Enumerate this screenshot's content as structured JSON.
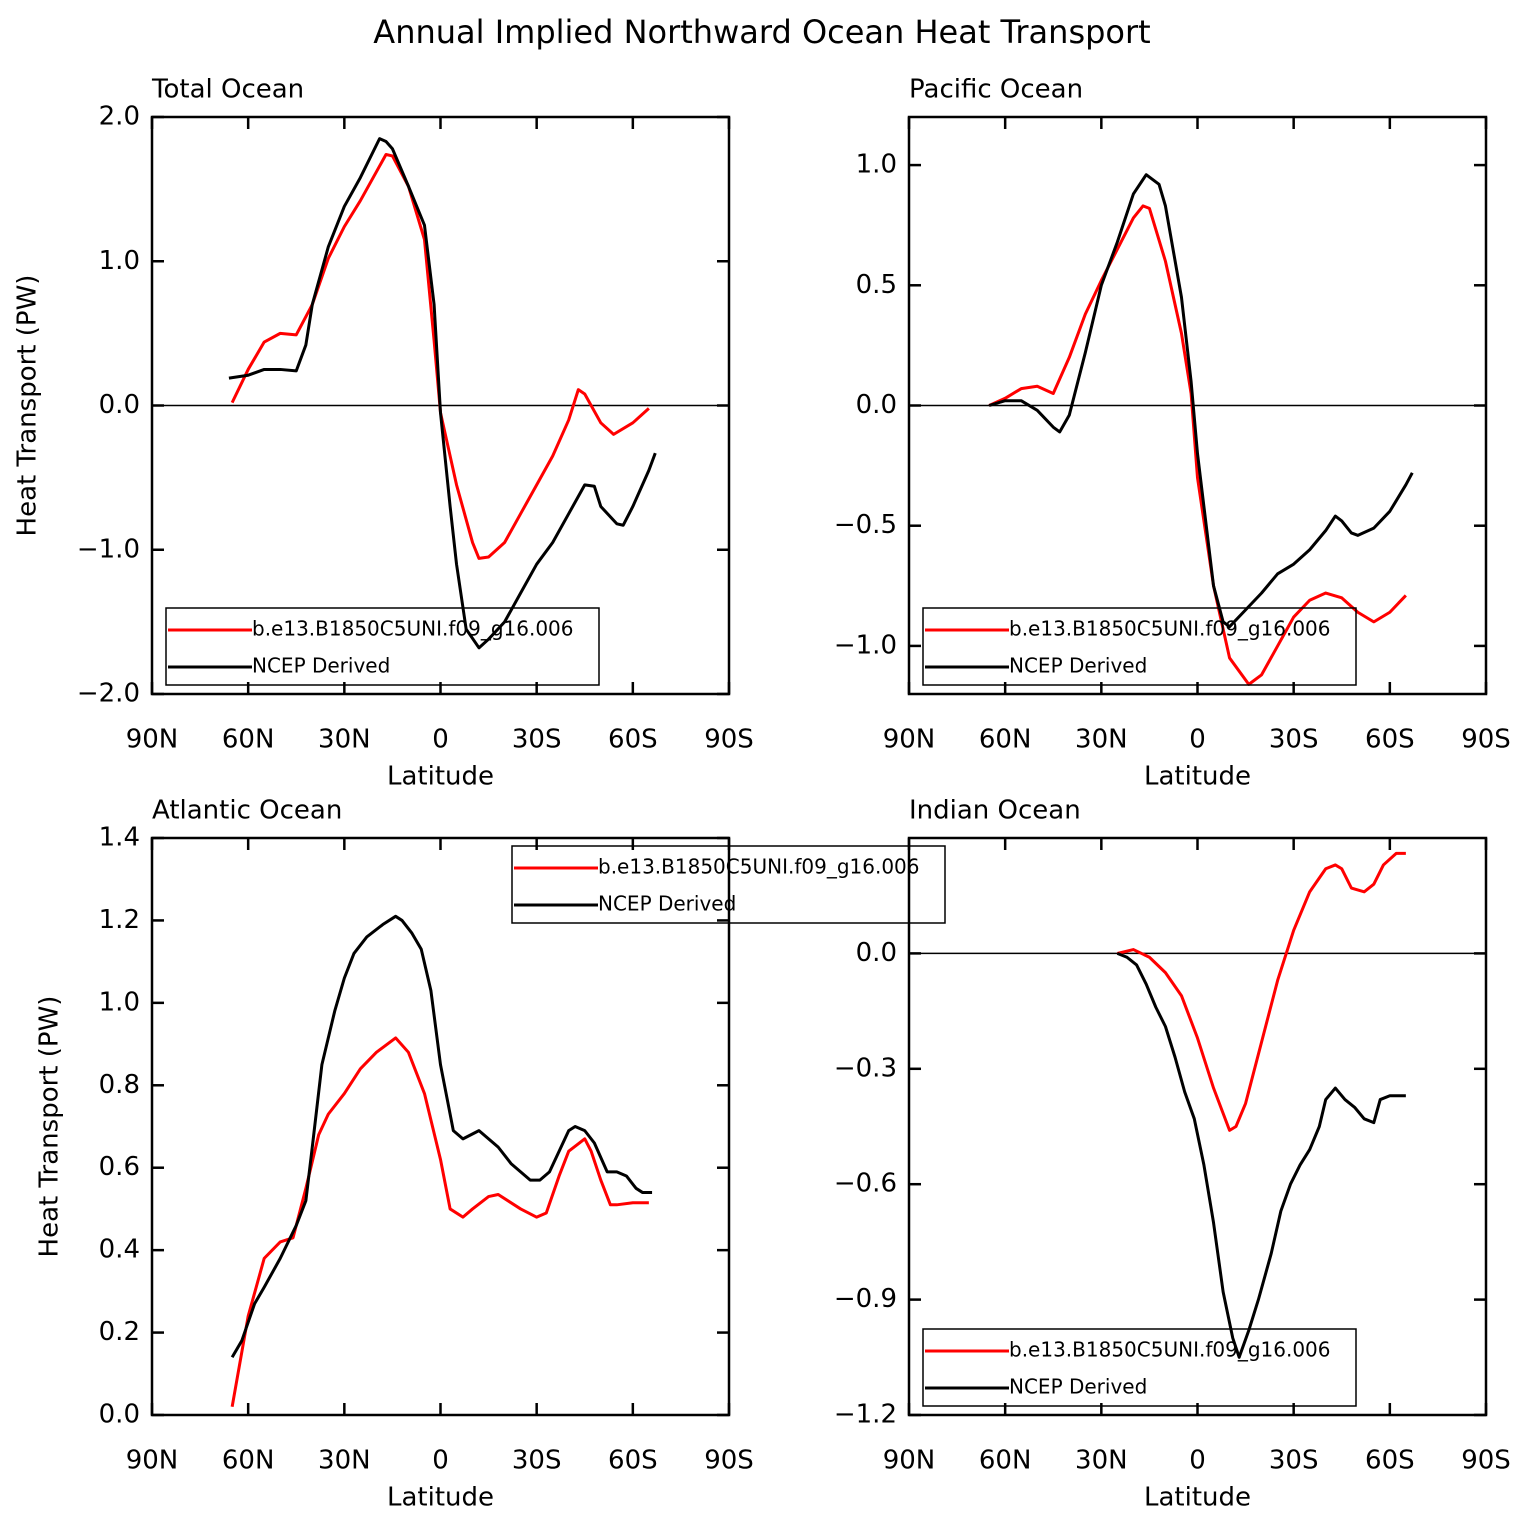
{
  "title": "Annual Implied Northward Ocean Heat Transport",
  "chart_data": [
    {
      "type": "line",
      "title": "Total Ocean",
      "xlabel": "Latitude",
      "ylabel": "Heat Transport (PW)",
      "xlim": [
        90,
        -90
      ],
      "xticks": [
        {
          "value": 90,
          "label": "90N"
        },
        {
          "value": 60,
          "label": "60N"
        },
        {
          "value": 30,
          "label": "30N"
        },
        0,
        {
          "value": -30,
          "label": "30S"
        },
        {
          "value": -60,
          "label": "60S"
        },
        {
          "value": -90,
          "label": "90S"
        }
      ],
      "ylim": [
        -2,
        2
      ],
      "yticks": [
        {
          "value": -2,
          "label": "−2.0"
        },
        {
          "value": -1,
          "label": "−1.0"
        },
        {
          "value": 0,
          "label": "0.0"
        },
        {
          "value": 1,
          "label": "1.0"
        },
        {
          "value": 2,
          "label": "2.0"
        }
      ],
      "zero_line": true,
      "legend": "lower left",
      "series": [
        {
          "name": "b.e13.B1850C5UNI.f09_g16.006",
          "color": "#ff0000",
          "x": [
            65,
            60,
            55,
            50,
            45,
            40,
            35,
            30,
            25,
            20,
            17,
            15,
            10,
            5,
            2,
            0,
            -5,
            -10,
            -12,
            -15,
            -20,
            -25,
            -30,
            -35,
            -40,
            -43,
            -45,
            -50,
            -54,
            -60,
            -65
          ],
          "values": [
            0.02,
            0.25,
            0.44,
            0.5,
            0.49,
            0.7,
            1.02,
            1.24,
            1.42,
            1.62,
            1.74,
            1.73,
            1.52,
            1.15,
            0.45,
            -0.05,
            -0.55,
            -0.95,
            -1.06,
            -1.05,
            -0.95,
            -0.75,
            -0.55,
            -0.35,
            -0.1,
            0.11,
            0.08,
            -0.12,
            -0.2,
            -0.12,
            -0.02
          ]
        },
        {
          "name": "NCEP Derived",
          "color": "#000000",
          "x": [
            66,
            60,
            55,
            50,
            45,
            42,
            40,
            35,
            30,
            25,
            19,
            17,
            15,
            10,
            5,
            2,
            0,
            -3,
            -5,
            -8,
            -12,
            -15,
            -20,
            -25,
            -30,
            -35,
            -40,
            -45,
            -48,
            -50,
            -55,
            -57,
            -60,
            -65,
            -67
          ],
          "values": [
            0.19,
            0.21,
            0.25,
            0.25,
            0.24,
            0.42,
            0.7,
            1.1,
            1.38,
            1.58,
            1.85,
            1.83,
            1.78,
            1.52,
            1.25,
            0.7,
            -0.05,
            -0.7,
            -1.1,
            -1.55,
            -1.68,
            -1.62,
            -1.5,
            -1.3,
            -1.1,
            -0.95,
            -0.75,
            -0.55,
            -0.56,
            -0.7,
            -0.82,
            -0.83,
            -0.7,
            -0.45,
            -0.33
          ]
        }
      ]
    },
    {
      "type": "line",
      "title": "Pacific Ocean",
      "xlabel": "Latitude",
      "xlim": [
        90,
        -90
      ],
      "xticks": [
        {
          "value": 90,
          "label": "90N"
        },
        {
          "value": 60,
          "label": "60N"
        },
        {
          "value": 30,
          "label": "30N"
        },
        0,
        {
          "value": -30,
          "label": "30S"
        },
        {
          "value": -60,
          "label": "60S"
        },
        {
          "value": -90,
          "label": "90S"
        }
      ],
      "ylim": [
        -1.2,
        1.2
      ],
      "yticks": [
        {
          "value": -1,
          "label": "−1.0"
        },
        {
          "value": -0.5,
          "label": "−0.5"
        },
        {
          "value": 0,
          "label": "0.0"
        },
        0.5,
        {
          "value": 1,
          "label": "1.0"
        }
      ],
      "zero_line": true,
      "legend": "lower left",
      "series": [
        {
          "name": "b.e13.B1850C5UNI.f09_g16.006",
          "color": "#ff0000",
          "x": [
            65,
            60,
            55,
            50,
            45,
            40,
            35,
            30,
            25,
            20,
            17,
            15,
            10,
            5,
            2,
            0,
            -5,
            -10,
            -16,
            -20,
            -25,
            -30,
            -35,
            -40,
            -45,
            -50,
            -55,
            -60,
            -65
          ],
          "values": [
            0,
            0.03,
            0.07,
            0.08,
            0.05,
            0.2,
            0.38,
            0.52,
            0.65,
            0.78,
            0.83,
            0.82,
            0.6,
            0.3,
            0.05,
            -0.3,
            -0.75,
            -1.05,
            -1.16,
            -1.12,
            -1.0,
            -0.88,
            -0.81,
            -0.78,
            -0.8,
            -0.86,
            -0.9,
            -0.86,
            -0.79
          ]
        },
        {
          "name": "NCEP Derived",
          "color": "#000000",
          "x": [
            65,
            60,
            55,
            50,
            45,
            43,
            40,
            35,
            30,
            25,
            20,
            16,
            12,
            10,
            5,
            2,
            0,
            -5,
            -8,
            -10,
            -15,
            -20,
            -25,
            -30,
            -35,
            -40,
            -43,
            -45,
            -48,
            -50,
            -55,
            -60,
            -65,
            -67
          ],
          "values": [
            0,
            0.02,
            0.02,
            -0.02,
            -0.09,
            -0.11,
            -0.04,
            0.22,
            0.5,
            0.68,
            0.88,
            0.96,
            0.92,
            0.83,
            0.45,
            0.1,
            -0.2,
            -0.75,
            -0.9,
            -0.92,
            -0.85,
            -0.78,
            -0.7,
            -0.66,
            -0.6,
            -0.52,
            -0.46,
            -0.48,
            -0.53,
            -0.54,
            -0.51,
            -0.44,
            -0.33,
            -0.28
          ]
        }
      ]
    },
    {
      "type": "line",
      "title": "Atlantic Ocean",
      "xlabel": "Latitude",
      "ylabel": "Heat Transport (PW)",
      "xlim": [
        90,
        -90
      ],
      "xticks": [
        {
          "value": 90,
          "label": "90N"
        },
        {
          "value": 60,
          "label": "60N"
        },
        {
          "value": 30,
          "label": "30N"
        },
        0,
        {
          "value": -30,
          "label": "30S"
        },
        {
          "value": -60,
          "label": "60S"
        },
        {
          "value": -90,
          "label": "90S"
        }
      ],
      "ylim": [
        0,
        1.4
      ],
      "yticks": [
        {
          "value": 0,
          "label": "0.0"
        },
        0.2,
        0.4,
        0.6,
        0.8,
        {
          "value": 1,
          "label": "1.0"
        },
        1.2,
        1.4
      ],
      "zero_line": false,
      "legend": "upper right",
      "series": [
        {
          "name": "b.e13.B1850C5UNI.f09_g16.006",
          "color": "#ff0000",
          "x": [
            65,
            60,
            55,
            50,
            46,
            42,
            38,
            35,
            30,
            25,
            20,
            14,
            10,
            5,
            0,
            -3,
            -7,
            -10,
            -15,
            -18,
            -25,
            -30,
            -33,
            -37,
            -40,
            -45,
            -47,
            -50,
            -53,
            -55,
            -60,
            -65
          ],
          "values": [
            0.02,
            0.24,
            0.38,
            0.42,
            0.43,
            0.55,
            0.68,
            0.73,
            0.78,
            0.84,
            0.88,
            0.915,
            0.88,
            0.78,
            0.62,
            0.5,
            0.48,
            0.5,
            0.53,
            0.535,
            0.5,
            0.48,
            0.49,
            0.58,
            0.64,
            0.67,
            0.64,
            0.57,
            0.51,
            0.51,
            0.515,
            0.515
          ]
        },
        {
          "name": "NCEP Derived",
          "color": "#000000",
          "x": [
            65,
            62,
            58,
            55,
            50,
            45,
            42,
            40,
            37,
            33,
            30,
            27,
            23,
            18,
            14,
            12,
            9,
            6,
            3,
            0,
            -2,
            -4,
            -7,
            -12,
            -18,
            -22,
            -25,
            -28,
            -31,
            -34,
            -37,
            -40,
            -42,
            -45,
            -48,
            -52,
            -55,
            -58,
            -61,
            -63,
            -66
          ],
          "values": [
            0.14,
            0.18,
            0.27,
            0.31,
            0.38,
            0.46,
            0.52,
            0.65,
            0.85,
            0.98,
            1.06,
            1.12,
            1.16,
            1.19,
            1.21,
            1.2,
            1.17,
            1.13,
            1.03,
            0.85,
            0.77,
            0.69,
            0.67,
            0.69,
            0.65,
            0.61,
            0.59,
            0.57,
            0.57,
            0.59,
            0.64,
            0.69,
            0.7,
            0.69,
            0.66,
            0.59,
            0.59,
            0.58,
            0.55,
            0.54,
            0.54
          ]
        }
      ]
    },
    {
      "type": "line",
      "title": "Indian Ocean",
      "xlabel": "Latitude",
      "xlim": [
        90,
        -90
      ],
      "xticks": [
        {
          "value": 90,
          "label": "90N"
        },
        {
          "value": 60,
          "label": "60N"
        },
        {
          "value": 30,
          "label": "30N"
        },
        0,
        {
          "value": -30,
          "label": "30S"
        },
        {
          "value": -60,
          "label": "60S"
        },
        {
          "value": -90,
          "label": "90S"
        }
      ],
      "ylim": [
        -1.2,
        0.3
      ],
      "yticks": [
        {
          "value": -1.2,
          "label": "−1.2"
        },
        {
          "value": -0.9,
          "label": "−0.9"
        },
        {
          "value": -0.6,
          "label": "−0.6"
        },
        {
          "value": -0.3,
          "label": "−0.3"
        },
        {
          "value": 0,
          "label": "0.0"
        }
      ],
      "zero_line": true,
      "legend": "lower left",
      "series": [
        {
          "name": "b.e13.B1850C5UNI.f09_g16.006",
          "color": "#ff0000",
          "x": [
            25,
            20,
            15,
            10,
            5,
            0,
            -5,
            -10,
            -12,
            -15,
            -20,
            -25,
            -30,
            -35,
            -40,
            -43,
            -45,
            -48,
            -52,
            -55,
            -58,
            -62,
            -65
          ],
          "values": [
            0,
            0.01,
            -0.01,
            -0.05,
            -0.11,
            -0.22,
            -0.35,
            -0.46,
            -0.45,
            -0.39,
            -0.23,
            -0.07,
            0.06,
            0.16,
            0.22,
            0.23,
            0.22,
            0.17,
            0.16,
            0.18,
            0.23,
            0.26,
            0.26
          ]
        },
        {
          "name": "NCEP Derived",
          "color": "#000000",
          "x": [
            25,
            22,
            19,
            16,
            13,
            10,
            7,
            4,
            1,
            -2,
            -5,
            -8,
            -11,
            -13,
            -16,
            -19,
            -23,
            -26,
            -29,
            -32,
            -35,
            -38,
            -40,
            -43,
            -46,
            -49,
            -52,
            -55,
            -57,
            -60,
            -65
          ],
          "values": [
            0,
            -0.01,
            -0.03,
            -0.08,
            -0.14,
            -0.19,
            -0.27,
            -0.36,
            -0.43,
            -0.55,
            -0.7,
            -0.88,
            -1.0,
            -1.05,
            -0.98,
            -0.9,
            -0.78,
            -0.67,
            -0.6,
            -0.55,
            -0.51,
            -0.45,
            -0.38,
            -0.35,
            -0.38,
            -0.4,
            -0.43,
            -0.44,
            -0.38,
            -0.37,
            -0.37
          ]
        }
      ]
    }
  ]
}
